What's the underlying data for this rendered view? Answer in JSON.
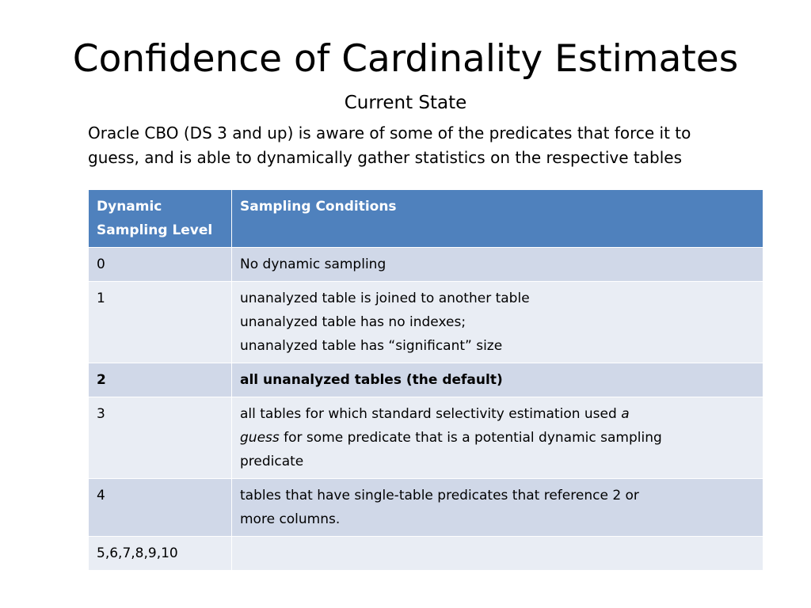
{
  "slide": {
    "title": "Confidence of Cardinality Estimates",
    "subtitle": "Current State",
    "intro_lines": [
      "Oracle CBO (DS 3 and up) is aware of some of the predicates that force it to",
      "guess, and is able to dynamically gather statistics on the respective tables"
    ]
  },
  "table": {
    "header": {
      "col1_line1": "Dynamic",
      "col1_line2": "Sampling Level",
      "col2": "Sampling Conditions"
    },
    "rows": [
      {
        "level": "0",
        "conditions": [
          "No dynamic sampling"
        ]
      },
      {
        "level": "1",
        "conditions": [
          "unanalyzed table is joined to another table",
          "unanalyzed table has no indexes;",
          "unanalyzed table has “significant” size"
        ]
      },
      {
        "level": "2",
        "conditions": [
          "all unanalyzed tables (the default)"
        ]
      },
      {
        "level": "3",
        "conditions": {
          "line1_pre": "all tables for which standard selectivity estimation used ",
          "line1_italic": "a",
          "line2_italic": "guess",
          "line2_post": " for some predicate that is a potential dynamic sampling",
          "line3": "predicate"
        }
      },
      {
        "level": "4",
        "conditions": [
          "tables that have single-table predicates that reference 2 or",
          "more columns."
        ]
      },
      {
        "level": "5,6,7,8,9,10",
        "conditions": [
          ""
        ]
      }
    ]
  }
}
